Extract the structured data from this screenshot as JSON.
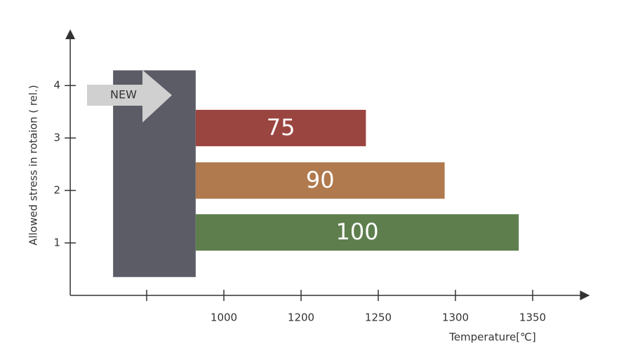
{
  "chart_data": {
    "type": "range-bar",
    "y_label": "Allowed stress in rotaion ( rel.)",
    "x_label": "Temperature[℃]",
    "xlim": [
      602,
      1387
    ],
    "ylim": [
      0,
      5.07
    ],
    "xticks": [
      {
        "value": 800,
        "label": null
      },
      1000,
      1200,
      1250,
      1300,
      1350
    ],
    "yticks": [
      1,
      2,
      3,
      4
    ],
    "new_block": {
      "label": "NEW",
      "color": "#5b5c66",
      "xstart": 713,
      "xend": 927,
      "ystart": 0.35,
      "yend": 4.29
    },
    "bars": [
      {
        "label": "100",
        "color": "#5e7f4d",
        "start": 927,
        "end": 1341,
        "y": 1.2
      },
      {
        "label": "90",
        "color": "#b07a4e",
        "start": 927,
        "end": 1293,
        "y": 2.19
      },
      {
        "label": "75",
        "color": "#9b4540",
        "start": 927,
        "end": 1242,
        "y": 3.19
      }
    ]
  }
}
